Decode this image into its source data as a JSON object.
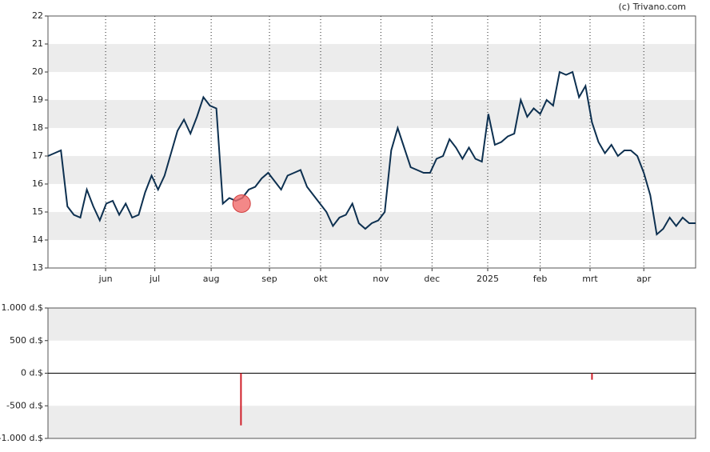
{
  "source": "(c) Trivano.com",
  "chart_data": [
    {
      "type": "line",
      "color": "#0d3050",
      "grid": "dotted",
      "xlim": [
        0,
        100
      ],
      "ylim": [
        13,
        22
      ],
      "yticks": [
        13,
        14,
        15,
        16,
        17,
        18,
        19,
        20,
        21,
        22
      ],
      "bands": [
        [
          14,
          15
        ],
        [
          16,
          17
        ],
        [
          18,
          19
        ],
        [
          20,
          21
        ]
      ],
      "xticks": [
        {
          "value": 8.9,
          "label": "jun"
        },
        {
          "value": 16.5,
          "label": "jul"
        },
        {
          "value": 25.2,
          "label": "aug"
        },
        {
          "value": 34.2,
          "label": "sep"
        },
        {
          "value": 42.1,
          "label": "okt"
        },
        {
          "value": 51.4,
          "label": "nov"
        },
        {
          "value": 59.3,
          "label": "dec"
        },
        {
          "value": 67.9,
          "label": "2025"
        },
        {
          "value": 76,
          "label": "feb"
        },
        {
          "value": 83.7,
          "label": "mrt"
        },
        {
          "value": 92,
          "label": "apr"
        }
      ],
      "values": [
        17.0,
        17.1,
        17.2,
        15.2,
        14.9,
        14.8,
        15.8,
        15.2,
        14.7,
        15.3,
        15.4,
        14.9,
        15.3,
        14.8,
        14.9,
        15.7,
        16.3,
        15.8,
        16.3,
        17.1,
        17.9,
        18.3,
        17.8,
        18.4,
        19.1,
        18.8,
        18.7,
        15.3,
        15.5,
        15.4,
        15.5,
        15.8,
        15.9,
        16.2,
        16.4,
        16.1,
        15.8,
        16.3,
        16.4,
        16.5,
        15.9,
        15.6,
        15.3,
        15.0,
        14.5,
        14.8,
        14.9,
        15.3,
        14.6,
        14.4,
        14.6,
        14.7,
        15.0,
        17.2,
        18.0,
        17.3,
        16.6,
        16.5,
        16.4,
        16.4,
        16.9,
        17.0,
        17.6,
        17.3,
        16.9,
        17.3,
        16.9,
        16.8,
        18.5,
        17.4,
        17.5,
        17.7,
        17.8,
        19.0,
        18.4,
        18.7,
        18.5,
        19.0,
        18.8,
        20.0,
        19.9,
        20.0,
        19.1,
        19.5,
        18.2,
        17.5,
        17.1,
        17.4,
        17.0,
        17.2,
        17.2,
        17.0,
        16.4,
        15.6,
        14.2,
        14.4,
        14.8,
        14.5,
        14.8,
        14.6,
        14.6
      ],
      "markers": [
        {
          "x": 29.9,
          "y": 15.3,
          "color": "#f06a6a"
        }
      ]
    },
    {
      "type": "bar",
      "color": "#d0202a",
      "xlim": [
        0,
        100
      ],
      "ylim": [
        -1000,
        1000
      ],
      "yticks": [
        {
          "value": -1000,
          "label": "-1.000 d.$"
        },
        {
          "value": -500,
          "label": "-500 d.$"
        },
        {
          "value": 0,
          "label": "0 d.$"
        },
        {
          "value": 500,
          "label": "500 d.$"
        },
        {
          "value": 1000,
          "label": "1.000 d.$"
        }
      ],
      "bands": [
        [
          -1000,
          -500
        ],
        [
          500,
          1000
        ]
      ],
      "x": [
        29.8,
        84
      ],
      "values": [
        -800,
        -100
      ]
    }
  ]
}
